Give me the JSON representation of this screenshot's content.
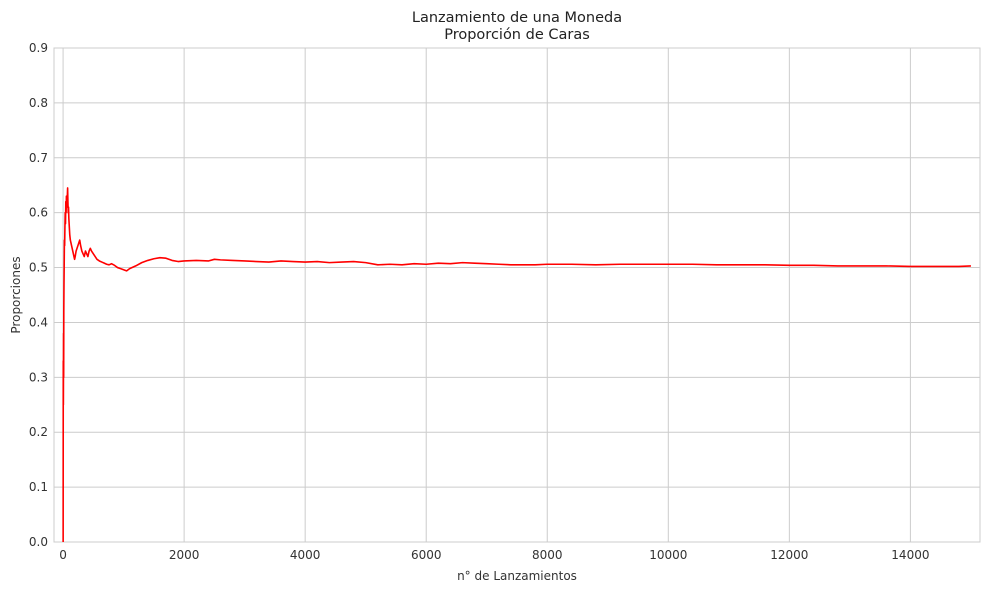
{
  "chart_data": {
    "type": "line",
    "title": "Lanzamiento de una Moneda",
    "subtitle": "Proporción de Caras",
    "xlabel": "n° de Lanzamientos",
    "ylabel": "Proporciones",
    "xlim": [
      -150,
      15150
    ],
    "ylim": [
      0,
      0.9
    ],
    "xticks": [
      0,
      2000,
      4000,
      6000,
      8000,
      10000,
      12000,
      14000
    ],
    "yticks": [
      0.0,
      0.1,
      0.2,
      0.3,
      0.4,
      0.5,
      0.6,
      0.7,
      0.8,
      0.9
    ],
    "grid": true,
    "line_color": "#ff0000",
    "series": [
      {
        "x": [
          1,
          3,
          5,
          8,
          10,
          12,
          15,
          18,
          22,
          26,
          30,
          35,
          40,
          45,
          50,
          55,
          60,
          65,
          70,
          75,
          80,
          85,
          90,
          95,
          100,
          110,
          120,
          130,
          140,
          150,
          160,
          170,
          180,
          190,
          200,
          215,
          230,
          245,
          260,
          275,
          290,
          310,
          330,
          350,
          370,
          390,
          410,
          430,
          450,
          470,
          500,
          530,
          560,
          600,
          640,
          680,
          720,
          760,
          800,
          850,
          900,
          950,
          1000,
          1050,
          1100,
          1200,
          1300,
          1400,
          1500,
          1600,
          1700,
          1800,
          1900,
          2000,
          2200,
          2400,
          2500,
          2600,
          2800,
          3000,
          3200,
          3400,
          3600,
          3800,
          4000,
          4200,
          4400,
          4600,
          4800,
          5000,
          5200,
          5400,
          5600,
          5800,
          6000,
          6200,
          6400,
          6600,
          6800,
          7000,
          7200,
          7400,
          7600,
          7800,
          8000,
          8400,
          8800,
          9200,
          9600,
          10000,
          10400,
          10800,
          11200,
          11600,
          12000,
          12400,
          12800,
          13200,
          13600,
          14000,
          14400,
          14800,
          15000
        ],
        "y": [
          0.0,
          0.33,
          0.25,
          0.38,
          0.3,
          0.42,
          0.47,
          0.5,
          0.55,
          0.54,
          0.57,
          0.6,
          0.58,
          0.62,
          0.6,
          0.63,
          0.61,
          0.62,
          0.63,
          0.645,
          0.62,
          0.6,
          0.61,
          0.59,
          0.58,
          0.56,
          0.55,
          0.545,
          0.54,
          0.535,
          0.53,
          0.525,
          0.52,
          0.515,
          0.52,
          0.53,
          0.535,
          0.54,
          0.545,
          0.55,
          0.54,
          0.53,
          0.525,
          0.52,
          0.53,
          0.525,
          0.52,
          0.53,
          0.535,
          0.53,
          0.525,
          0.52,
          0.515,
          0.512,
          0.51,
          0.508,
          0.506,
          0.505,
          0.507,
          0.504,
          0.5,
          0.498,
          0.496,
          0.494,
          0.498,
          0.503,
          0.509,
          0.513,
          0.516,
          0.518,
          0.517,
          0.513,
          0.511,
          0.512,
          0.513,
          0.512,
          0.515,
          0.514,
          0.513,
          0.512,
          0.511,
          0.51,
          0.512,
          0.511,
          0.51,
          0.511,
          0.509,
          0.51,
          0.511,
          0.509,
          0.505,
          0.506,
          0.505,
          0.507,
          0.506,
          0.508,
          0.507,
          0.509,
          0.508,
          0.507,
          0.506,
          0.505,
          0.505,
          0.505,
          0.506,
          0.506,
          0.505,
          0.506,
          0.506,
          0.506,
          0.506,
          0.505,
          0.505,
          0.505,
          0.504,
          0.504,
          0.503,
          0.503,
          0.503,
          0.502,
          0.502,
          0.502,
          0.503
        ]
      }
    ]
  }
}
